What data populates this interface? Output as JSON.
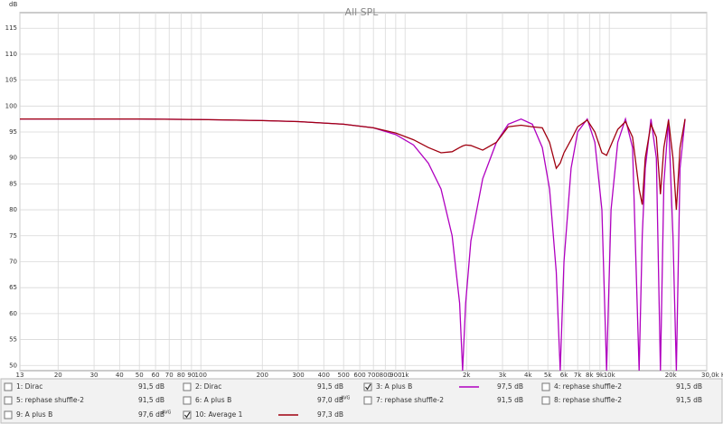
{
  "chart_data": {
    "type": "line",
    "title": "All SPL",
    "y_label": "dB",
    "log_x": true,
    "grid": true,
    "xlim": [
      13,
      30000
    ],
    "ylim": [
      49,
      118
    ],
    "yticks": [
      50,
      55,
      60,
      65,
      70,
      75,
      80,
      85,
      90,
      95,
      100,
      105,
      110,
      115
    ],
    "xticks": [
      13,
      20,
      30,
      40,
      50,
      60,
      70,
      80,
      90,
      100,
      200,
      300,
      400,
      500,
      600,
      700,
      800,
      900,
      {
        "value": 1000,
        "label": "1k"
      },
      {
        "value": 2000,
        "label": "2k"
      },
      {
        "value": 3000,
        "label": "3k"
      },
      {
        "value": 4000,
        "label": "4k"
      },
      {
        "value": 5000,
        "label": "5k"
      },
      {
        "value": 6000,
        "label": "6k"
      },
      {
        "value": 7000,
        "label": "7k"
      },
      {
        "value": 8000,
        "label": "8k"
      },
      {
        "value": 9000,
        "label": "9k"
      },
      {
        "value": 10000,
        "label": "10k"
      },
      {
        "value": 20000,
        "label": "20k"
      },
      {
        "value": 30000,
        "label": "30,0k Hz"
      }
    ],
    "x": [
      13,
      20,
      50,
      100,
      200,
      300,
      500,
      700,
      900,
      1100,
      1300,
      1500,
      1700,
      1850,
      1913,
      1980,
      2100,
      2400,
      2800,
      3200,
      3700,
      4200,
      4700,
      5100,
      5500,
      5750,
      6000,
      6500,
      7000,
      7800,
      8500,
      9200,
      9700,
      10200,
      11000,
      12000,
      13000,
      14000,
      14500,
      15000,
      16000,
      17000,
      17800,
      18500,
      19500,
      20500,
      21300,
      22200,
      23500
    ],
    "series": [
      {
        "name": "3: A plus B",
        "color": "#b000c0",
        "values": [
          97.5,
          97.5,
          97.5,
          97.4,
          97.2,
          97,
          96.5,
          95.8,
          94.5,
          92.5,
          89,
          84,
          75,
          62,
          49,
          62,
          74,
          86,
          93,
          96.5,
          97.5,
          96.5,
          92,
          84,
          68,
          49,
          70,
          88,
          95,
          97.5,
          93,
          80,
          49,
          80,
          93,
          97.5,
          92,
          49,
          75,
          88,
          97.5,
          90,
          49,
          85,
          97.5,
          75,
          49,
          88,
          97.5
        ]
      },
      {
        "name": "10: Average 1",
        "color": "#a00010",
        "values": [
          97.5,
          97.5,
          97.5,
          97.4,
          97.2,
          97,
          96.5,
          95.8,
          94.8,
          93.5,
          92,
          91,
          91.2,
          92,
          92.3,
          92.5,
          92.4,
          91.5,
          93,
          96,
          96.3,
          96,
          95.8,
          93,
          88,
          89,
          91,
          93.5,
          96,
          97.3,
          95,
          91,
          90.5,
          92.5,
          95.5,
          97,
          94,
          84,
          81,
          90,
          96.5,
          94,
          83,
          92,
          97.3,
          90,
          80,
          92,
          97.5
        ]
      }
    ],
    "legend": [
      {
        "label": "1: Dirac",
        "color": "#1a8c8c",
        "reading": "91,5 dB",
        "checked": false
      },
      {
        "label": "2: Dirac",
        "color": "#e03030",
        "reading": "91,5 dB",
        "checked": false
      },
      {
        "series": 0,
        "reading": "97,5 dB",
        "checked": true
      },
      {
        "label": "4: rephase shuffle-2",
        "color": "#2a8a2a",
        "reading": "91,5 dB",
        "checked": false
      },
      {
        "label": "5: rephase shuffle-2",
        "color": "#999999",
        "reading": "91,5 dB",
        "checked": false
      },
      {
        "label": "6: A plus B",
        "color": "#d02020",
        "reading": "97,0 dB",
        "note": "AVG",
        "checked": false
      },
      {
        "label": "7: rephase shuffle-2",
        "color": "#e03030",
        "reading": "91,5 dB",
        "checked": false
      },
      {
        "label": "8: rephase shuffle-2",
        "color": "#202090",
        "reading": "91,5 dB",
        "checked": false
      },
      {
        "label": "9: A plus B",
        "color": "#4ac04a",
        "reading": "97,6 dB",
        "note": "AVG",
        "checked": false
      },
      {
        "series": 1,
        "reading": "97,3 dB",
        "checked": true
      }
    ]
  }
}
